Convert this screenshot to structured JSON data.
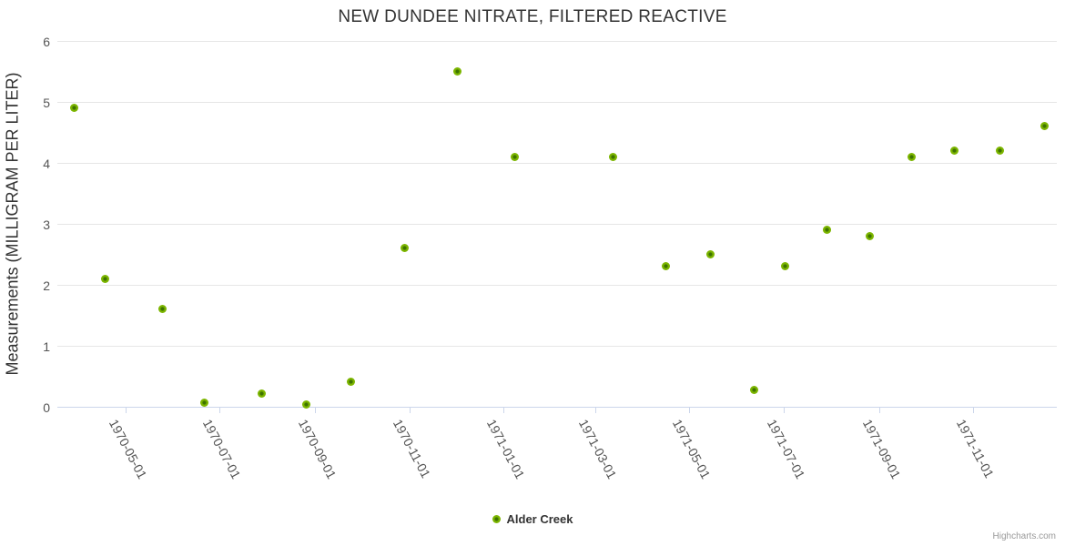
{
  "credits": "Highcharts.com",
  "colors": {
    "marker_outer": "#7cb500",
    "marker_core": "#3d7300",
    "gridline": "#e6e6e6",
    "axis_line": "#ccd6eb",
    "label": "#555555",
    "title": "#333333"
  },
  "chart_data": {
    "type": "scatter",
    "title": "NEW DUNDEE NITRATE, FILTERED REACTIVE",
    "xlabel": "",
    "ylabel": "Measurements (MILLIGRAM PER LITER)",
    "ylim": [
      0,
      6
    ],
    "y_ticks": [
      0,
      1,
      2,
      3,
      4,
      5,
      6
    ],
    "x_ticks": [
      "1970-05-01",
      "1970-07-01",
      "1970-09-01",
      "1970-11-01",
      "1971-01-01",
      "1971-03-01",
      "1971-05-01",
      "1971-07-01",
      "1971-09-01",
      "1971-11-01"
    ],
    "x_range": [
      "1970-03-18",
      "1971-12-25"
    ],
    "grid": true,
    "legend_position": "bottom-center",
    "series": [
      {
        "name": "Alder Creek",
        "color": "#7cb500",
        "points": [
          {
            "date": "1970-03-29",
            "value": 4.9
          },
          {
            "date": "1970-04-18",
            "value": 2.1
          },
          {
            "date": "1970-05-25",
            "value": 1.6
          },
          {
            "date": "1970-06-21",
            "value": 0.06
          },
          {
            "date": "1970-07-28",
            "value": 0.22
          },
          {
            "date": "1970-08-26",
            "value": 0.04
          },
          {
            "date": "1970-09-24",
            "value": 0.41
          },
          {
            "date": "1970-10-29",
            "value": 2.6
          },
          {
            "date": "1970-12-02",
            "value": 5.5
          },
          {
            "date": "1971-01-08",
            "value": 4.1
          },
          {
            "date": "1971-03-13",
            "value": 4.1
          },
          {
            "date": "1971-04-16",
            "value": 2.3
          },
          {
            "date": "1971-05-15",
            "value": 2.5
          },
          {
            "date": "1971-06-12",
            "value": 0.27
          },
          {
            "date": "1971-07-02",
            "value": 2.3
          },
          {
            "date": "1971-07-29",
            "value": 2.9
          },
          {
            "date": "1971-08-26",
            "value": 2.8
          },
          {
            "date": "1971-09-22",
            "value": 4.1
          },
          {
            "date": "1971-10-20",
            "value": 4.2
          },
          {
            "date": "1971-11-18",
            "value": 4.2
          },
          {
            "date": "1971-12-17",
            "value": 4.6
          }
        ]
      }
    ]
  }
}
